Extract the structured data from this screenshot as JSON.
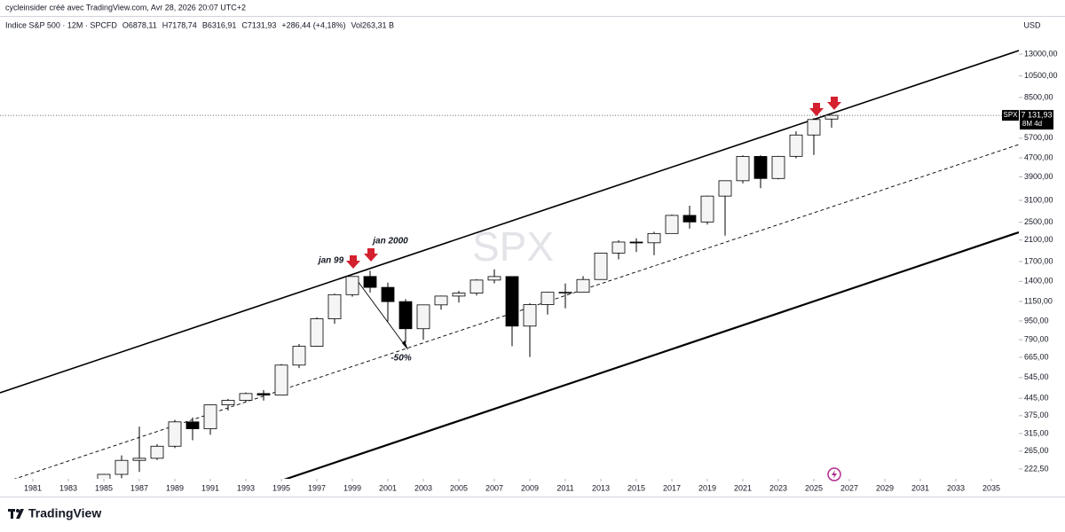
{
  "header": {
    "text": "cycleinsider créé avec TradingView.com, Avr 28, 2026 20:07 UTC+2"
  },
  "legend": [
    "Indice S&P 500 · 12M · SPCFD",
    "O6878,11",
    "H7178,74",
    "B6316,91",
    "C7131,93",
    "+286,44 (+4,18%)",
    "Vol263,31 B"
  ],
  "chart_data": {
    "type": "candlestick",
    "watermark": "SPX",
    "currency": "USD",
    "log_scale": true,
    "up_color": "#f5f5f5",
    "down_color": "#000000",
    "x": [
      1985,
      1986,
      1987,
      1988,
      1989,
      1990,
      1991,
      1992,
      1993,
      1994,
      1995,
      1996,
      1997,
      1998,
      1999,
      2000,
      2001,
      2002,
      2003,
      2004,
      2005,
      2006,
      2007,
      2008,
      2009,
      2010,
      2011,
      2012,
      2013,
      2014,
      2015,
      2016,
      2017,
      2018,
      2019,
      2020,
      2021,
      2022,
      2023,
      2024,
      2025,
      2026
    ],
    "open": [
      167,
      211,
      242,
      247,
      278,
      353,
      330,
      417,
      436,
      466,
      459,
      616,
      741,
      970,
      1229,
      1469,
      1320,
      1148,
      880,
      1112,
      1212,
      1248,
      1418,
      1468,
      903,
      1115,
      1258,
      1258,
      1426,
      1848,
      2059,
      2044,
      2239,
      2674,
      2507,
      3231,
      3756,
      4766,
      3840,
      4770,
      5882,
      6878.11
    ],
    "high": [
      212,
      254,
      337,
      284,
      360,
      369,
      418,
      442,
      471,
      482,
      622,
      757,
      984,
      1242,
      1469,
      1553,
      1383,
      1176,
      1112,
      1218,
      1275,
      1431,
      1576,
      1471,
      1130,
      1262,
      1371,
      1475,
      1849,
      2094,
      2135,
      2277,
      2695,
      2941,
      3247,
      3756,
      4819,
      4819,
      4794,
      6100,
      6945,
      7178.74
    ],
    "low": [
      163,
      203,
      216,
      243,
      273,
      295,
      311,
      394,
      429,
      435,
      459,
      598,
      737,
      923,
      1205,
      1254,
      945,
      768,
      789,
      1061,
      1137,
      1219,
      1374,
      741,
      667,
      1011,
      1075,
      1258,
      1426,
      1737,
      1867,
      1810,
      2239,
      2347,
      2444,
      2192,
      3663,
      3492,
      3809,
      4683,
      4836,
      6316.91
    ],
    "close": [
      211,
      242,
      247,
      278,
      353,
      330,
      417,
      436,
      466,
      459,
      616,
      741,
      970,
      1229,
      1469,
      1320,
      1148,
      880,
      1112,
      1212,
      1248,
      1418,
      1468,
      903,
      1115,
      1258,
      1258,
      1426,
      1848,
      2059,
      2044,
      2239,
      2674,
      2507,
      3231,
      3756,
      4766,
      3840,
      4770,
      5882,
      6846,
      7131.93
    ],
    "xlim": [
      1979.15,
      2036.55
    ],
    "xticks": [
      1981,
      1983,
      1985,
      1987,
      1989,
      1991,
      1993,
      1995,
      1997,
      1999,
      2001,
      2003,
      2005,
      2007,
      2009,
      2011,
      2013,
      2015,
      2017,
      2019,
      2021,
      2023,
      2025,
      2027,
      2029,
      2031,
      2033,
      2035
    ],
    "ylim": [
      202,
      18900
    ],
    "yticks": [
      {
        "value": 13000,
        "label": "13000,00"
      },
      {
        "value": 10500,
        "label": "10500,00"
      },
      {
        "value": 8500,
        "label": "8500,00"
      },
      {
        "value": 5700,
        "label": "5700,00"
      },
      {
        "value": 4700,
        "label": "4700,00"
      },
      {
        "value": 3900,
        "label": "3900,00"
      },
      {
        "value": 3100,
        "label": "3100,00"
      },
      {
        "value": 2500,
        "label": "2500,00"
      },
      {
        "value": 2100,
        "label": "2100,00"
      },
      {
        "value": 1700,
        "label": "1700,00"
      },
      {
        "value": 1400,
        "label": "1400,00"
      },
      {
        "value": 1150,
        "label": "1150,00"
      },
      {
        "value": 950,
        "label": "950,00"
      },
      {
        "value": 790,
        "label": "790,00"
      },
      {
        "value": 665,
        "label": "665,00"
      },
      {
        "value": 545,
        "label": "545,00"
      },
      {
        "value": 445,
        "label": "445,00"
      },
      {
        "value": 375,
        "label": "375,00"
      },
      {
        "value": 315,
        "label": "315,00"
      },
      {
        "value": 265,
        "label": "265,00"
      },
      {
        "value": 222.5,
        "label": "222,50"
      }
    ],
    "last_price": {
      "value": 7131.93,
      "symbol": "SPX",
      "label": "7 131,93",
      "countdown": "8M 4d"
    },
    "annotations": [
      "jan 99",
      "jan 2000",
      "-50%"
    ]
  },
  "footer": {
    "brand": "TradingView"
  }
}
